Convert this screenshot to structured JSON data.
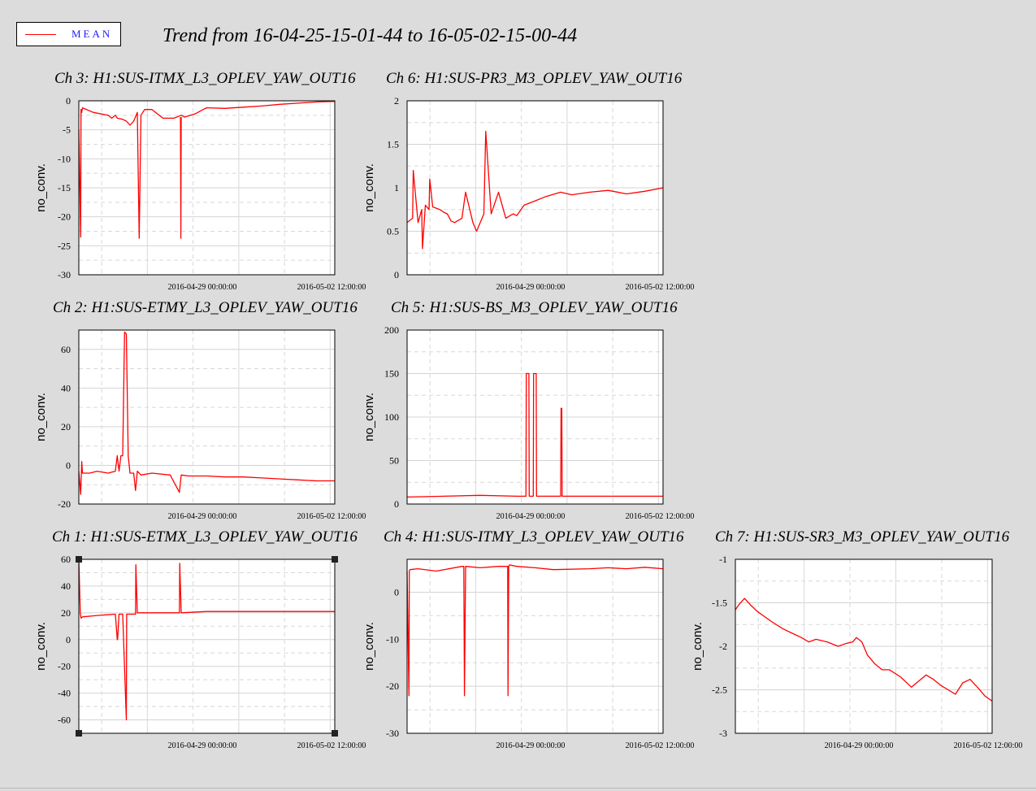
{
  "legend": {
    "label": "MEAN",
    "color": "#ff0000",
    "label_color": "#1a1aff"
  },
  "title": "Trend from 16-04-25-15-01-44 to 16-05-02-15-00-44",
  "series_color": "#ff0000",
  "chart_data": [
    {
      "type": "line",
      "title": "Ch 3: H1:SUS-ITMX_L3_OPLEV_YAW_OUT16",
      "ylabel": "no_conv.",
      "ylim": [
        -30,
        0
      ],
      "yticks": [
        0,
        -5,
        -10,
        -15,
        -20,
        -25,
        -30
      ],
      "x_ticklabels": [
        "2016-04-29 00:00:00",
        "2016-05-02 12:00:00"
      ],
      "xlim": [
        0,
        7
      ],
      "grid": true,
      "series": [
        {
          "x": [
            0,
            0.05,
            0.06,
            0.08,
            0.1,
            0.4,
            0.8,
            0.9,
            1.0,
            1.05,
            1.2,
            1.3,
            1.4,
            1.5,
            1.6,
            1.65,
            1.7,
            1.8,
            2.0,
            2.3,
            2.6,
            2.8,
            2.9,
            3.0,
            3.2,
            3.4,
            3.5,
            4.0,
            4.5,
            5.0,
            5.5,
            6.0,
            6.5,
            7.0
          ],
          "y": [
            -5,
            -23.5,
            -1.5,
            -2,
            -1.2,
            -2,
            -2.5,
            -3,
            -2.5,
            -3,
            -3.2,
            -3.5,
            -4.2,
            -3.5,
            -2,
            -23.7,
            -2.5,
            -1.5,
            -1.5,
            -3,
            -3,
            -2.5,
            -2.8,
            -2.6,
            -2.2,
            -1.5,
            -1.2,
            -1.3,
            -1.1,
            -0.9,
            -0.6,
            -0.4,
            -0.2,
            -0.1
          ]
        },
        {
          "x": [
            2.78,
            2.79,
            2.8
          ],
          "y": [
            -2.8,
            -23.7,
            -2.8
          ]
        }
      ]
    },
    {
      "type": "line",
      "title": "Ch 6: H1:SUS-PR3_M3_OPLEV_YAW_OUT16",
      "ylabel": "no_conv.",
      "ylim": [
        0,
        2
      ],
      "yticks": [
        2,
        1.5,
        1,
        0.5,
        0
      ],
      "x_ticklabels": [
        "2016-04-29 00:00:00",
        "2016-05-02 12:00:00"
      ],
      "xlim": [
        0,
        7
      ],
      "grid": true,
      "series": [
        {
          "x": [
            0,
            0.15,
            0.17,
            0.3,
            0.4,
            0.42,
            0.5,
            0.6,
            0.62,
            0.7,
            0.9,
            1.0,
            1.1,
            1.2,
            1.3,
            1.5,
            1.6,
            1.8,
            1.9,
            2.1,
            2.15,
            2.3,
            2.5,
            2.7,
            2.9,
            3.0,
            3.2,
            3.5,
            3.8,
            4.2,
            4.5,
            5.0,
            5.5,
            6.0,
            6.5,
            7.0
          ],
          "y": [
            0.6,
            0.65,
            1.2,
            0.6,
            0.75,
            0.3,
            0.8,
            0.75,
            1.1,
            0.78,
            0.75,
            0.72,
            0.7,
            0.62,
            0.6,
            0.65,
            0.95,
            0.6,
            0.5,
            0.7,
            1.65,
            0.7,
            0.95,
            0.65,
            0.7,
            0.68,
            0.8,
            0.85,
            0.9,
            0.95,
            0.92,
            0.95,
            0.97,
            0.93,
            0.96,
            1.0
          ]
        }
      ]
    },
    {
      "type": "line",
      "title": "Ch 2: H1:SUS-ETMY_L3_OPLEV_YAW_OUT16",
      "ylabel": "no_conv.",
      "ylim": [
        -20,
        70
      ],
      "yticks": [
        60,
        40,
        20,
        0,
        -20
      ],
      "x_ticklabels": [
        "2016-04-29 00:00:00",
        "2016-05-02 12:00:00"
      ],
      "xlim": [
        0,
        7
      ],
      "grid": true,
      "series": [
        {
          "x": [
            0,
            0.05,
            0.08,
            0.1,
            0.3,
            0.5,
            0.8,
            1.0,
            1.05,
            1.1,
            1.15,
            1.2,
            1.25,
            1.3,
            1.35,
            1.4,
            1.5,
            1.55,
            1.6,
            1.7,
            2.0,
            2.5,
            2.75,
            2.8,
            3.0,
            3.5,
            4.0,
            4.5,
            5.0,
            5.5,
            6.0,
            6.5,
            7.0
          ],
          "y": [
            -3,
            -15,
            2,
            -4,
            -4,
            -3,
            -4,
            -3,
            5,
            -3,
            5,
            5,
            69,
            68,
            5,
            -4,
            -4,
            -13,
            -3,
            -5,
            -4,
            -5,
            -14,
            -5,
            -5.5,
            -5.5,
            -6,
            -6,
            -6.5,
            -7,
            -7.5,
            -8,
            -8
          ]
        }
      ]
    },
    {
      "type": "line",
      "title": "Ch 5: H1:SUS-BS_M3_OPLEV_YAW_OUT16",
      "ylabel": "no_conv.",
      "ylim": [
        0,
        200
      ],
      "yticks": [
        200,
        150,
        100,
        50,
        0
      ],
      "x_ticklabels": [
        "2016-04-29 00:00:00",
        "2016-05-02 12:00:00"
      ],
      "xlim": [
        0,
        7
      ],
      "grid": true,
      "series": [
        {
          "x": [
            0,
            1.0,
            2.0,
            3.0,
            3.25,
            3.26,
            3.33,
            3.34,
            3.45,
            3.46,
            3.53,
            3.54,
            4.2,
            4.21,
            4.23,
            4.24,
            5.0,
            6.0,
            7.0
          ],
          "y": [
            8,
            9,
            10,
            9,
            9,
            150,
            150,
            9,
            9,
            150,
            150,
            9,
            9,
            110,
            110,
            9,
            9,
            9,
            9
          ]
        }
      ]
    },
    {
      "type": "line",
      "title": "Ch 1: H1:SUS-ETMX_L3_OPLEV_YAW_OUT16",
      "ylabel": "no_conv.",
      "ylim": [
        -70,
        60
      ],
      "yticks": [
        60,
        40,
        20,
        0,
        -20,
        -40,
        -60
      ],
      "x_ticklabels": [
        "2016-04-29 00:00:00",
        "2016-05-02 12:00:00"
      ],
      "xlim": [
        0,
        7
      ],
      "grid": true,
      "series": [
        {
          "x": [
            0,
            0.04,
            0.06,
            0.1,
            0.5,
            1.0,
            1.05,
            1.06,
            1.1,
            1.2,
            1.3,
            1.31,
            1.35,
            1.55,
            1.56,
            1.6,
            2.0,
            2.75,
            2.76,
            2.8,
            3.5,
            4.0,
            5.0,
            6.0,
            7.0
          ],
          "y": [
            60,
            20,
            16,
            17,
            18,
            19,
            0,
            0,
            19,
            19,
            -60,
            19,
            19,
            19,
            56,
            20,
            20,
            20,
            57,
            20,
            21,
            21,
            21,
            21,
            21
          ]
        }
      ]
    },
    {
      "type": "line",
      "title": "Ch 4: H1:SUS-ITMY_L3_OPLEV_YAW_OUT16",
      "ylabel": "no_conv.",
      "ylim": [
        -30,
        7
      ],
      "yticks": [
        0,
        -10,
        -20,
        -30
      ],
      "x_ticklabels": [
        "2016-04-29 00:00:00",
        "2016-05-02 12:00:00"
      ],
      "xlim": [
        0,
        7
      ],
      "grid": true,
      "series": [
        {
          "x": [
            0,
            0.05,
            0.06,
            0.08,
            0.3,
            0.8,
            1.5,
            1.55,
            1.57,
            1.6,
            2.0,
            2.5,
            2.75,
            2.76,
            2.78,
            2.8,
            3.0,
            3.5,
            4.0,
            5.0,
            5.5,
            6.0,
            6.5,
            7.0
          ],
          "y": [
            4.5,
            -22,
            4.5,
            4.8,
            5,
            4.5,
            5.5,
            5.5,
            -22,
            5.5,
            5.2,
            5.5,
            5.5,
            -22,
            5.5,
            5.8,
            5.5,
            5.2,
            4.8,
            5,
            5.2,
            5,
            5.3,
            5
          ]
        }
      ]
    },
    {
      "type": "line",
      "title": "Ch 7: H1:SUS-SR3_M3_OPLEV_YAW_OUT16",
      "ylabel": "no_conv.",
      "ylim": [
        -3,
        -1
      ],
      "yticks": [
        -1,
        -1.5,
        -2,
        -2.5,
        -3
      ],
      "x_ticklabels": [
        "2016-04-29 00:00:00",
        "2016-05-02 12:00:00"
      ],
      "xlim": [
        0,
        7
      ],
      "grid": true,
      "series": [
        {
          "x": [
            0,
            0.1,
            0.25,
            0.4,
            0.6,
            0.8,
            1.0,
            1.3,
            1.6,
            1.8,
            2.0,
            2.2,
            2.5,
            2.8,
            3.0,
            3.2,
            3.3,
            3.45,
            3.6,
            3.8,
            4.0,
            4.2,
            4.5,
            4.8,
            5.0,
            5.2,
            5.4,
            5.6,
            5.8,
            6.0,
            6.2,
            6.4,
            6.6,
            6.8,
            7.0
          ],
          "y": [
            -1.58,
            -1.52,
            -1.45,
            -1.52,
            -1.6,
            -1.66,
            -1.72,
            -1.8,
            -1.86,
            -1.9,
            -1.95,
            -1.92,
            -1.95,
            -2.0,
            -1.97,
            -1.95,
            -1.9,
            -1.95,
            -2.1,
            -2.2,
            -2.27,
            -2.27,
            -2.35,
            -2.47,
            -2.4,
            -2.33,
            -2.38,
            -2.45,
            -2.5,
            -2.55,
            -2.42,
            -2.38,
            -2.47,
            -2.57,
            -2.63
          ]
        }
      ]
    }
  ]
}
